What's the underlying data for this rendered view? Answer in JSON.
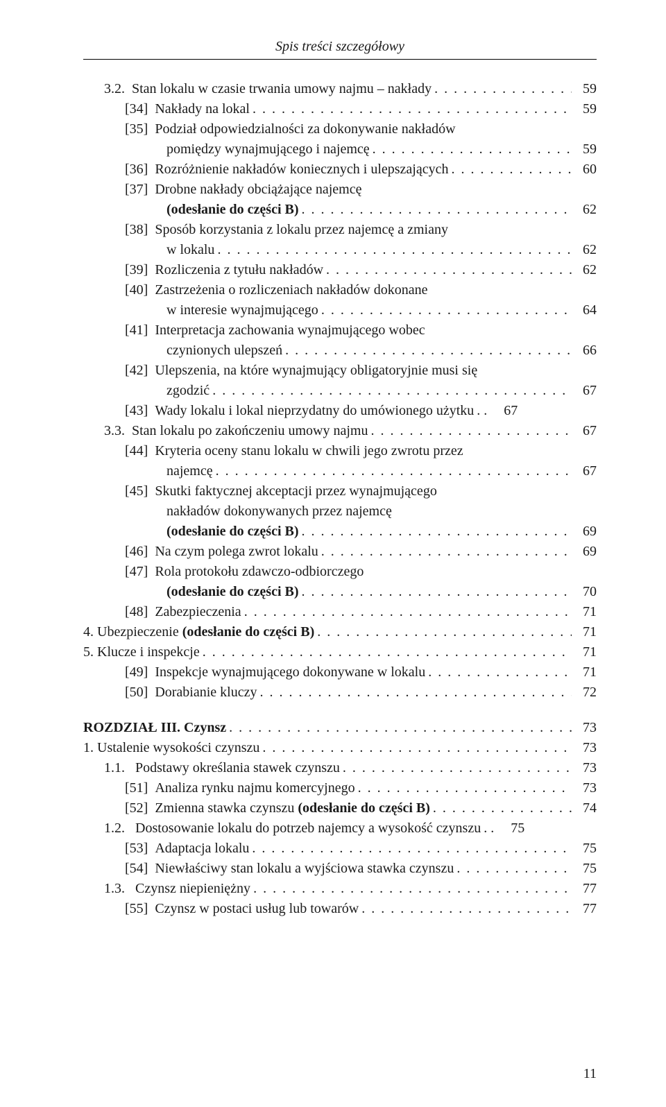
{
  "running_head": "Spis treści szczegółowy",
  "page_number": "11",
  "typography": {
    "font_family": "Georgia, Times New Roman, serif",
    "body_fontsize_pt": 15,
    "header_fontsize_pt": 15,
    "text_color": "#1a1a1a",
    "background_color": "#ffffff",
    "rule_color": "#000000",
    "leader_char": "."
  },
  "lines": [
    {
      "indent": 1,
      "label": "3.2.  ",
      "text": "Stan lokalu w czasie trwania umowy najmu – nakłady",
      "page": "59"
    },
    {
      "indent": 2,
      "label": "[34]  ",
      "text": "Nakłady na lokal",
      "page": "59"
    },
    {
      "indent": 2,
      "label": "[35]  ",
      "text": "Podział odpowiedzialności za dokonywanie nakładów",
      "cont": true
    },
    {
      "indent": "cont-item",
      "label": "",
      "text": "pomiędzy wynajmującego i najemcę",
      "page": "59"
    },
    {
      "indent": 2,
      "label": "[36]  ",
      "text": "Rozróżnienie nakładów koniecznych i ulepszających",
      "page": "60"
    },
    {
      "indent": 2,
      "label": "[37]  ",
      "text": "Drobne nakłady obciążające najemcę",
      "cont": true
    },
    {
      "indent": "cont-item",
      "label": "",
      "text_html": "<span class=\"bold-span\">(odesłanie do części B)</span>",
      "page": "62"
    },
    {
      "indent": 2,
      "label": "[38]  ",
      "text": "Sposób korzystania z lokalu przez najemcę a zmiany",
      "cont": true
    },
    {
      "indent": "cont-item",
      "label": "",
      "text": "w lokalu",
      "page": "62"
    },
    {
      "indent": 2,
      "label": "[39]  ",
      "text": "Rozliczenia z tytułu nakładów",
      "page": "62"
    },
    {
      "indent": 2,
      "label": "[40]  ",
      "text": "Zastrzeżenia o rozliczeniach nakładów dokonane",
      "cont": true
    },
    {
      "indent": "cont-item",
      "label": "",
      "text": "w interesie wynajmującego",
      "page": "64"
    },
    {
      "indent": 2,
      "label": "[41]  ",
      "text": "Interpretacja zachowania wynajmującego wobec",
      "cont": true
    },
    {
      "indent": "cont-item",
      "label": "",
      "text": "czynionych ulepszeń",
      "page": "66"
    },
    {
      "indent": 2,
      "label": "[42]  ",
      "text": "Ulepszenia, na które wynajmujący obligatoryjnie musi się",
      "cont": true
    },
    {
      "indent": "cont-item",
      "label": "",
      "text": "zgodzić",
      "page": "67"
    },
    {
      "indent": 2,
      "label": "[43]  ",
      "text": "Wady lokalu i lokal nieprzydatny do umówionego użytku",
      "leader_short": true,
      "page": "67"
    },
    {
      "indent": 1,
      "label": "3.3.  ",
      "text": "Stan lokalu po zakończeniu umowy najmu",
      "page": "67"
    },
    {
      "indent": 2,
      "label": "[44]  ",
      "text": "Kryteria oceny stanu lokalu w chwili jego zwrotu przez",
      "cont": true
    },
    {
      "indent": "cont-item",
      "label": "",
      "text": "najemcę",
      "page": "67"
    },
    {
      "indent": 2,
      "label": "[45]  ",
      "text": "Skutki faktycznej akceptacji przez wynajmującego",
      "cont": true
    },
    {
      "indent": "cont-item",
      "label": "",
      "text": "nakładów dokonywanych przez najemcę",
      "cont": true
    },
    {
      "indent": "cont-item",
      "label": "",
      "text_html": "<span class=\"bold-span\">(odesłanie do części B)</span>",
      "page": "69"
    },
    {
      "indent": 2,
      "label": "[46]  ",
      "text": "Na czym polega zwrot lokalu",
      "page": "69"
    },
    {
      "indent": 2,
      "label": "[47]  ",
      "text": "Rola protokołu zdawczo-odbiorczego",
      "cont": true
    },
    {
      "indent": "cont-item",
      "label": "",
      "text_html": "<span class=\"bold-span\">(odesłanie do części B)</span>",
      "page": "70"
    },
    {
      "indent": 2,
      "label": "[48]  ",
      "text": "Zabezpieczenia",
      "page": "71"
    },
    {
      "indent": 0,
      "label": "4. ",
      "text_html": "Ubezpieczenie <span class=\"bold-span\">(odesłanie do części B)</span>",
      "page": "71"
    },
    {
      "indent": 0,
      "label": "5. ",
      "text": "Klucze i inspekcje",
      "page": "71"
    },
    {
      "indent": 2,
      "label": "[49]  ",
      "text": "Inspekcje wynajmującego dokonywane w lokalu",
      "page": "71"
    },
    {
      "indent": 2,
      "label": "[50]  ",
      "text": "Dorabianie kluczy",
      "page": "72"
    },
    {
      "indent": 0,
      "chapter": true,
      "label": "",
      "text_html": "<span class=\"bold-span\">ROZDZIAŁ III. Czynsz</span>",
      "page": "73"
    },
    {
      "indent": 0,
      "label": "1. ",
      "text": "Ustalenie wysokości czynszu",
      "page": "73"
    },
    {
      "indent": 1,
      "label": "1.1.   ",
      "text": "Podstawy określania stawek czynszu",
      "page": "73"
    },
    {
      "indent": 2,
      "label": "[51]  ",
      "text": "Analiza rynku najmu komercyjnego",
      "page": "73"
    },
    {
      "indent": 2,
      "label": "[52]  ",
      "text_html": "Zmienna stawka czynszu <span class=\"bold-span\">(odesłanie do części B)</span>",
      "page": "74"
    },
    {
      "indent": 1,
      "label": "1.2.   ",
      "text": "Dostosowanie lokalu do potrzeb najemcy a wysokość czynszu",
      "leader_short": true,
      "page": "75"
    },
    {
      "indent": 2,
      "label": "[53]  ",
      "text": "Adaptacja lokalu",
      "page": "75"
    },
    {
      "indent": 2,
      "label": "[54]  ",
      "text": "Niewłaściwy stan lokalu a wyjściowa stawka czynszu",
      "page": "75"
    },
    {
      "indent": 1,
      "label": "1.3.   ",
      "text": "Czynsz niepieniężny",
      "page": "77"
    },
    {
      "indent": 2,
      "label": "[55]  ",
      "text": "Czynsz w postaci usług lub towarów",
      "page": "77"
    }
  ]
}
